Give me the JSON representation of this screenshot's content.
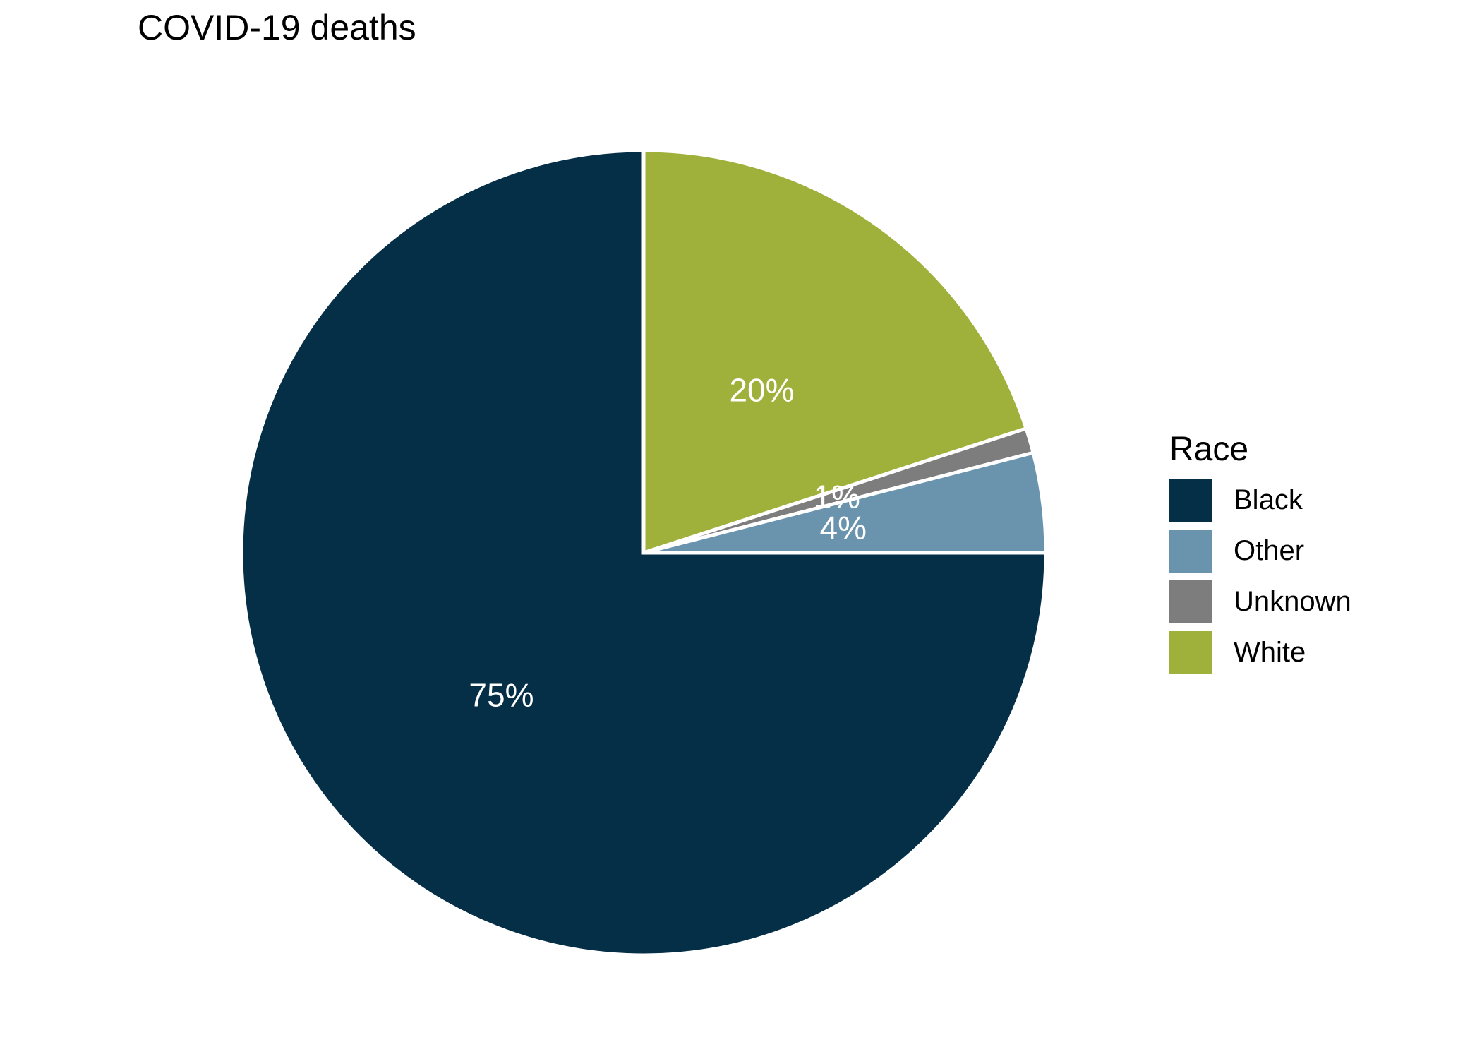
{
  "title": {
    "text": "COVID-19 deaths"
  },
  "chart_data": {
    "type": "pie",
    "title": "COVID-19 deaths",
    "unit": "percent",
    "direction": "clockwise",
    "start_angle_deg": 0,
    "stroke_color": "#ffffff",
    "label_color": "#ffffff",
    "slices": [
      {
        "category": "White",
        "value": 20,
        "label": "20%",
        "color": "#a0b13b"
      },
      {
        "category": "Unknown",
        "value": 1,
        "label": "1%",
        "color": "#7d7d7d"
      },
      {
        "category": "Other",
        "value": 4,
        "label": "4%",
        "color": "#6a94ae"
      },
      {
        "category": "Black",
        "value": 75,
        "label": "75%",
        "color": "#052f47"
      }
    ],
    "legend": {
      "title": "Race",
      "position": "right",
      "entries": [
        {
          "label": "Black",
          "color": "#052f47"
        },
        {
          "label": "Other",
          "color": "#6a94ae"
        },
        {
          "label": "Unknown",
          "color": "#7d7d7d"
        },
        {
          "label": "White",
          "color": "#a0b13b"
        }
      ]
    }
  }
}
